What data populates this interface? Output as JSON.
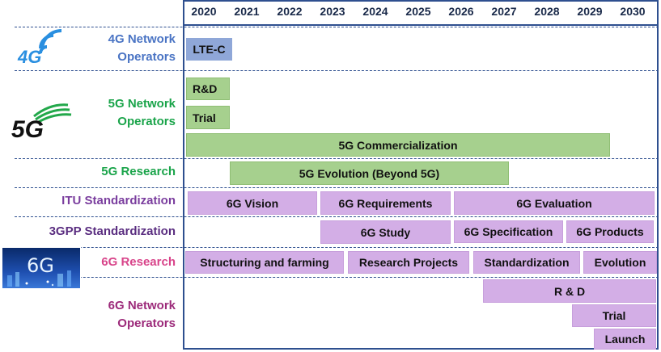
{
  "years": [
    "2020",
    "2021",
    "2022",
    "2023",
    "2024",
    "2025",
    "2026",
    "2027",
    "2028",
    "2029",
    "2030"
  ],
  "colors": {
    "frame": "#2e4f8f",
    "label_4g": "#4a74c4",
    "label_5g": "#1aa44a",
    "label_itu": "#7a3d9e",
    "label_3gpp": "#5a2d80",
    "label_6g_research": "#d8448a",
    "label_6g_operators": "#9c2a7a",
    "bar_blue": "#8fa7d8",
    "bar_green": "#a6d08e",
    "bar_purple": "#d3aee6"
  },
  "rows": {
    "r4g": {
      "label": [
        "4G Network",
        "Operators"
      ]
    },
    "r5g": {
      "label": [
        "5G Network",
        "Operators"
      ]
    },
    "r5gres": {
      "label": [
        "5G Research"
      ]
    },
    "itu": {
      "label": [
        "ITU Standardization"
      ]
    },
    "gpp": {
      "label": [
        "3GPP Standardization"
      ]
    },
    "res6g": {
      "label": [
        "6G Research"
      ]
    },
    "op6g": {
      "label": [
        "6G Network",
        "Operators"
      ]
    }
  },
  "bars": {
    "lte": "LTE-C",
    "rnd5g": "R&D",
    "trial5g": "Trial",
    "comm5g": "5G Commercialization",
    "evo5g": "5G Evolution (Beyond 5G)",
    "vision6g": "6G Vision",
    "req6g": "6G Requirements",
    "eval6g": "6G Evaluation",
    "study6g": "6G Study",
    "spec6g": "6G Specification",
    "prod6g": "6G Products",
    "struct6g": "Structuring and farming",
    "proj6g": "Research Projects",
    "std6g": "Standardization",
    "evo6g": "Evolution",
    "rnd6g": "R & D",
    "trial6g": "Trial",
    "launch6g": "Launch"
  },
  "logos": {
    "logo4g": "4G",
    "logo5g": "5G",
    "logo6g": "6G"
  },
  "icons": {
    "logo4g": "wifi-arc-icon",
    "logo5g": "signal-swoosh-icon",
    "logo6g": "city-lights-image"
  }
}
